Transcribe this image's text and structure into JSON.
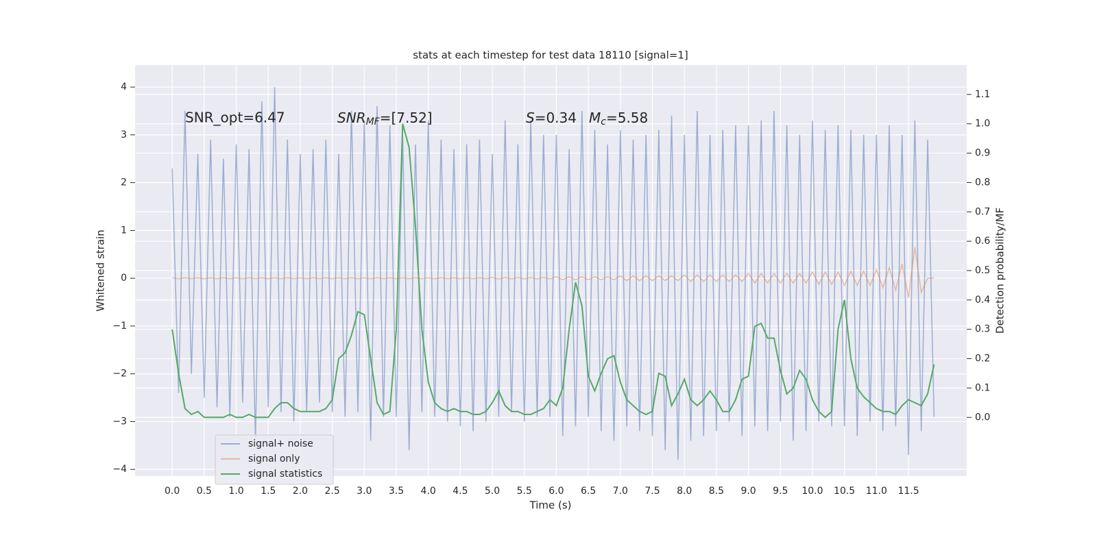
{
  "chart_data": {
    "type": "line",
    "title": "stats at each timestep for test data 18110 [signal=1]",
    "xlabel": "Time (s)",
    "ylabel": "Whitened strain",
    "y2label": "Detection probability/MF",
    "annotations": [
      {
        "text": "SNR_opt=6.47"
      },
      {
        "base": "SNR",
        "sub": "MF",
        "rest": "=[7.52]"
      },
      {
        "base": "S",
        "rest": "=0.34"
      },
      {
        "base": "M",
        "sub": "c",
        "rest": "=5.58"
      }
    ],
    "x": [
      0.0,
      0.1,
      0.2,
      0.3,
      0.4,
      0.5,
      0.6,
      0.7,
      0.8,
      0.9,
      1.0,
      1.1,
      1.2,
      1.3,
      1.4,
      1.5,
      1.6,
      1.7,
      1.8,
      1.9,
      2.0,
      2.1,
      2.2,
      2.3,
      2.4,
      2.5,
      2.6,
      2.7,
      2.8,
      2.9,
      3.0,
      3.1,
      3.2,
      3.3,
      3.4,
      3.5,
      3.6,
      3.7,
      3.8,
      3.9,
      4.0,
      4.1,
      4.2,
      4.3,
      4.4,
      4.5,
      4.6,
      4.7,
      4.8,
      4.9,
      5.0,
      5.1,
      5.2,
      5.3,
      5.4,
      5.5,
      5.6,
      5.7,
      5.8,
      5.9,
      6.0,
      6.1,
      6.2,
      6.3,
      6.4,
      6.5,
      6.6,
      6.7,
      6.8,
      6.9,
      7.0,
      7.1,
      7.2,
      7.3,
      7.4,
      7.5,
      7.6,
      7.7,
      7.8,
      7.9,
      8.0,
      8.1,
      8.2,
      8.3,
      8.4,
      8.5,
      8.6,
      8.7,
      8.8,
      8.9,
      9.0,
      9.1,
      9.2,
      9.3,
      9.4,
      9.5,
      9.6,
      9.7,
      9.8,
      9.9,
      10.0,
      10.1,
      10.2,
      10.3,
      10.4,
      10.5,
      10.6,
      10.7,
      10.8,
      10.9,
      11.0,
      11.1,
      11.2,
      11.3,
      11.4,
      11.5,
      11.6,
      11.7,
      11.8,
      11.9
    ],
    "series": [
      {
        "name": "signal+ noise",
        "color": "#4c72b0",
        "alpha": 0.5,
        "values": [
          2.3,
          -2.4,
          3.5,
          -2.0,
          2.6,
          -2.5,
          2.9,
          -2.7,
          2.5,
          -2.9,
          2.8,
          -2.6,
          2.7,
          -3.4,
          3.7,
          -2.7,
          4.0,
          -2.8,
          2.9,
          -3.0,
          2.6,
          -2.8,
          2.7,
          -2.6,
          2.9,
          -2.8,
          2.6,
          -2.9,
          3.5,
          -2.8,
          3.3,
          -3.4,
          3.6,
          -2.9,
          3.2,
          -2.9,
          3.0,
          -3.6,
          2.8,
          -2.8,
          3.3,
          -2.9,
          2.9,
          -3.0,
          2.7,
          -3.1,
          2.8,
          -3.2,
          2.9,
          -3.0,
          2.6,
          -2.9,
          3.3,
          -2.8,
          2.8,
          -3.0,
          3.3,
          -2.9,
          3.0,
          -2.9,
          3.0,
          -3.3,
          2.7,
          -3.1,
          3.5,
          -2.9,
          3.1,
          -3.2,
          2.8,
          -3.4,
          3.1,
          -3.1,
          2.9,
          -3.2,
          3.0,
          -3.3,
          3.1,
          -3.6,
          3.4,
          -3.8,
          3.0,
          -3.4,
          3.5,
          -3.3,
          3.0,
          -3.2,
          3.1,
          -3.0,
          3.2,
          -3.3,
          3.2,
          -3.1,
          3.3,
          -3.2,
          3.5,
          -3.0,
          3.2,
          -3.4,
          3.0,
          -3.2,
          3.3,
          -3.0,
          3.1,
          -3.1,
          3.2,
          -3.1,
          3.1,
          -3.3,
          3.0,
          -3.0,
          3.0,
          -3.2,
          3.2,
          -3.1,
          3.0,
          -3.7,
          3.3,
          -3.2,
          2.9,
          -2.9
        ]
      },
      {
        "name": "signal only",
        "color": "#dd8452",
        "alpha": 0.5,
        "values": [
          0.01,
          -0.01,
          0.01,
          -0.01,
          0.01,
          -0.01,
          0.01,
          -0.01,
          0.01,
          -0.01,
          0.01,
          -0.01,
          0.01,
          -0.01,
          0.01,
          -0.01,
          0.01,
          -0.01,
          0.01,
          -0.01,
          0.01,
          -0.01,
          0.01,
          -0.01,
          0.01,
          -0.01,
          0.01,
          -0.01,
          0.01,
          -0.01,
          0.01,
          -0.01,
          0.01,
          -0.01,
          0.01,
          -0.01,
          0.01,
          -0.01,
          0.01,
          -0.01,
          0.01,
          -0.01,
          0.01,
          -0.01,
          0.01,
          -0.01,
          0.01,
          -0.01,
          0.01,
          -0.01,
          0.015,
          -0.015,
          0.015,
          -0.015,
          0.015,
          -0.015,
          0.015,
          -0.015,
          0.015,
          -0.015,
          0.03,
          -0.03,
          0.03,
          -0.03,
          0.03,
          -0.03,
          0.03,
          -0.03,
          0.03,
          -0.03,
          0.05,
          -0.05,
          0.05,
          -0.05,
          0.05,
          -0.05,
          0.05,
          -0.05,
          0.05,
          -0.05,
          0.07,
          -0.07,
          0.07,
          -0.07,
          0.07,
          -0.07,
          0.07,
          -0.07,
          0.07,
          -0.07,
          0.1,
          -0.1,
          0.1,
          -0.1,
          0.1,
          -0.1,
          0.1,
          -0.1,
          0.1,
          -0.1,
          0.13,
          -0.13,
          0.13,
          -0.13,
          0.13,
          -0.15,
          0.15,
          -0.15,
          0.15,
          -0.15,
          0.18,
          -0.2,
          0.22,
          -0.25,
          0.3,
          -0.4,
          0.65,
          -0.3,
          0,
          0
        ]
      },
      {
        "name": "signal statistics",
        "color": "#55a868",
        "alpha": 1,
        "axis": "y2",
        "values": [
          0.3,
          0.15,
          0.03,
          0.01,
          0.02,
          0.0,
          0.0,
          0.0,
          0.0,
          0.01,
          0.0,
          0.0,
          0.01,
          0.0,
          0.0,
          0.0,
          0.03,
          0.05,
          0.05,
          0.03,
          0.02,
          0.02,
          0.02,
          0.02,
          0.03,
          0.06,
          0.2,
          0.22,
          0.28,
          0.36,
          0.35,
          0.2,
          0.05,
          0.01,
          0.02,
          0.3,
          1.0,
          0.92,
          0.65,
          0.3,
          0.12,
          0.05,
          0.03,
          0.02,
          0.03,
          0.02,
          0.02,
          0.01,
          0.01,
          0.02,
          0.05,
          0.09,
          0.04,
          0.02,
          0.02,
          0.01,
          0.01,
          0.02,
          0.03,
          0.06,
          0.04,
          0.1,
          0.3,
          0.46,
          0.38,
          0.14,
          0.09,
          0.15,
          0.2,
          0.21,
          0.12,
          0.06,
          0.04,
          0.02,
          0.01,
          0.02,
          0.15,
          0.14,
          0.04,
          0.08,
          0.13,
          0.06,
          0.04,
          0.06,
          0.09,
          0.06,
          0.02,
          0.02,
          0.06,
          0.13,
          0.14,
          0.31,
          0.32,
          0.27,
          0.27,
          0.16,
          0.08,
          0.1,
          0.16,
          0.13,
          0.06,
          0.02,
          0.0,
          0.02,
          0.3,
          0.4,
          0.2,
          0.1,
          0.07,
          0.05,
          0.03,
          0.02,
          0.02,
          0.01,
          0.04,
          0.06,
          0.05,
          0.04,
          0.08,
          0.18
        ]
      }
    ],
    "xlim": [
      -0.58,
      12.41
    ],
    "xticks": [
      {
        "value": 0,
        "label": "0.0"
      },
      {
        "value": 0.5,
        "label": "0.5"
      },
      {
        "value": 1,
        "label": "1.0"
      },
      {
        "value": 1.5,
        "label": "1.5"
      },
      {
        "value": 2,
        "label": "2.0"
      },
      {
        "value": 2.5,
        "label": "2.5"
      },
      {
        "value": 3,
        "label": "3.0"
      },
      {
        "value": 3.5,
        "label": "3.5"
      },
      {
        "value": 4,
        "label": "4.0"
      },
      {
        "value": 4.5,
        "label": "4.5"
      },
      {
        "value": 5,
        "label": "5.0"
      },
      {
        "value": 5.5,
        "label": "5.5"
      },
      {
        "value": 6,
        "label": "6.0"
      },
      {
        "value": 6.5,
        "label": "6.5"
      },
      {
        "value": 7,
        "label": "7.0"
      },
      {
        "value": 7.5,
        "label": "7.5"
      },
      {
        "value": 8,
        "label": "8.0"
      },
      {
        "value": 8.5,
        "label": "8.5"
      },
      {
        "value": 9,
        "label": "9.0"
      },
      {
        "value": 9.5,
        "label": "9.5"
      },
      {
        "value": 10,
        "label": "10.0"
      },
      {
        "value": 10.5,
        "label": "10.5"
      },
      {
        "value": 11,
        "label": "11.0"
      },
      {
        "value": 11.5,
        "label": "11.5"
      }
    ],
    "ylim": [
      -4.14,
      4.46
    ],
    "yticks": [
      {
        "value": -4,
        "label": "−4"
      },
      {
        "value": -3,
        "label": "−3"
      },
      {
        "value": -2,
        "label": "−2"
      },
      {
        "value": -1,
        "label": "−1"
      },
      0,
      1,
      2,
      3,
      4
    ],
    "y2lim": [
      -0.2,
      1.2
    ],
    "y2ticks": [
      {
        "value": 0,
        "label": "0.0"
      },
      {
        "value": 0.1,
        "label": "0.1"
      },
      {
        "value": 0.2,
        "label": "0.2"
      },
      {
        "value": 0.3,
        "label": "0.3"
      },
      {
        "value": 0.4,
        "label": "0.4"
      },
      {
        "value": 0.5,
        "label": "0.5"
      },
      {
        "value": 0.6,
        "label": "0.6"
      },
      {
        "value": 0.7,
        "label": "0.7"
      },
      {
        "value": 0.8,
        "label": "0.8"
      },
      {
        "value": 0.9,
        "label": "0.9"
      },
      {
        "value": 1,
        "label": "1.0"
      },
      {
        "value": 1.1,
        "label": "1.1"
      }
    ],
    "grid": true,
    "legend": "lower left",
    "background": "#eaeaf2"
  }
}
